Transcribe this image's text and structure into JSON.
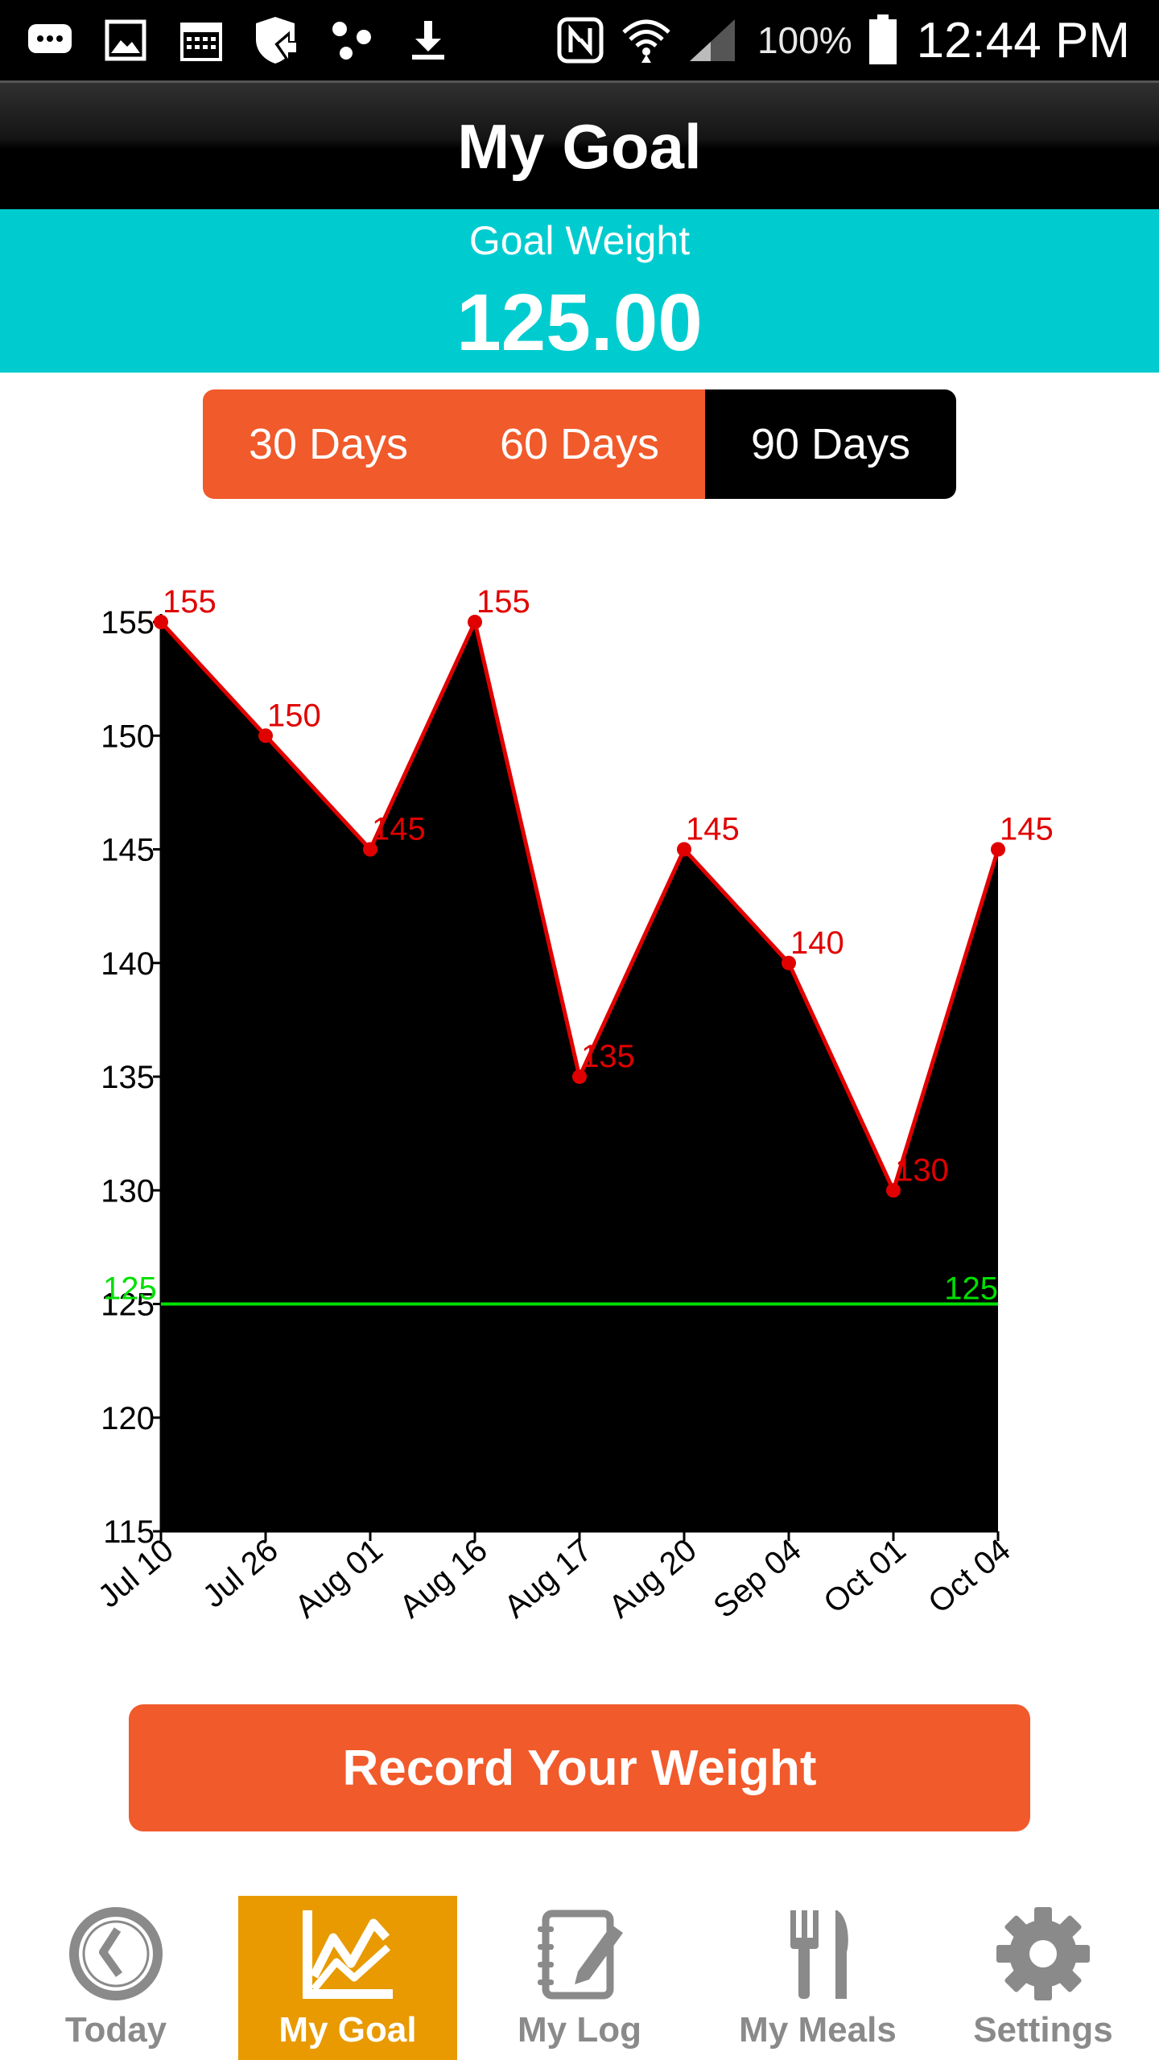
{
  "status_bar": {
    "battery": "100%",
    "time": "12:44 PM",
    "left_icons": [
      "messages-icon",
      "gallery-icon",
      "calendar-icon",
      "shield-icon",
      "share-icon",
      "download-icon"
    ],
    "right_icons": [
      "nfc-icon",
      "wifi-icon",
      "signal-icon",
      "battery-icon"
    ]
  },
  "header": {
    "title": "My Goal"
  },
  "goal": {
    "label": "Goal Weight",
    "value": "125.00"
  },
  "range_tabs": [
    {
      "label": "30 Days",
      "active": false
    },
    {
      "label": "60 Days",
      "active": false
    },
    {
      "label": "90 Days",
      "active": true
    }
  ],
  "chart_data": {
    "type": "area",
    "categories": [
      "Jul 10",
      "Jul 26",
      "Aug 01",
      "Aug 16",
      "Aug 17",
      "Aug 20",
      "Sep 04",
      "Oct 01",
      "Oct 04"
    ],
    "values": [
      155,
      150,
      145,
      155,
      135,
      145,
      140,
      130,
      145
    ],
    "point_labels": [
      "155",
      "150",
      "145",
      "155",
      "135",
      "145",
      "140",
      "130",
      "145"
    ],
    "y_ticks": [
      "155",
      "150",
      "145",
      "140",
      "135",
      "130",
      "125",
      "120",
      "115"
    ],
    "ylim": [
      115,
      155
    ],
    "goal_line": {
      "value": 125,
      "label_left": "125",
      "label_right": "125",
      "color": "#00e000"
    },
    "line_color": "#e00000",
    "fill_color": "#000000",
    "grid": false
  },
  "record_button": {
    "label": "Record Your Weight"
  },
  "bottom_nav": [
    {
      "label": "Today",
      "icon": "clock-icon",
      "active": false
    },
    {
      "label": "My Goal",
      "icon": "chart-icon",
      "active": true
    },
    {
      "label": "My Log",
      "icon": "notebook-icon",
      "active": false
    },
    {
      "label": "My Meals",
      "icon": "fork-knife-icon",
      "active": false
    },
    {
      "label": "Settings",
      "icon": "gear-icon",
      "active": false
    }
  ]
}
